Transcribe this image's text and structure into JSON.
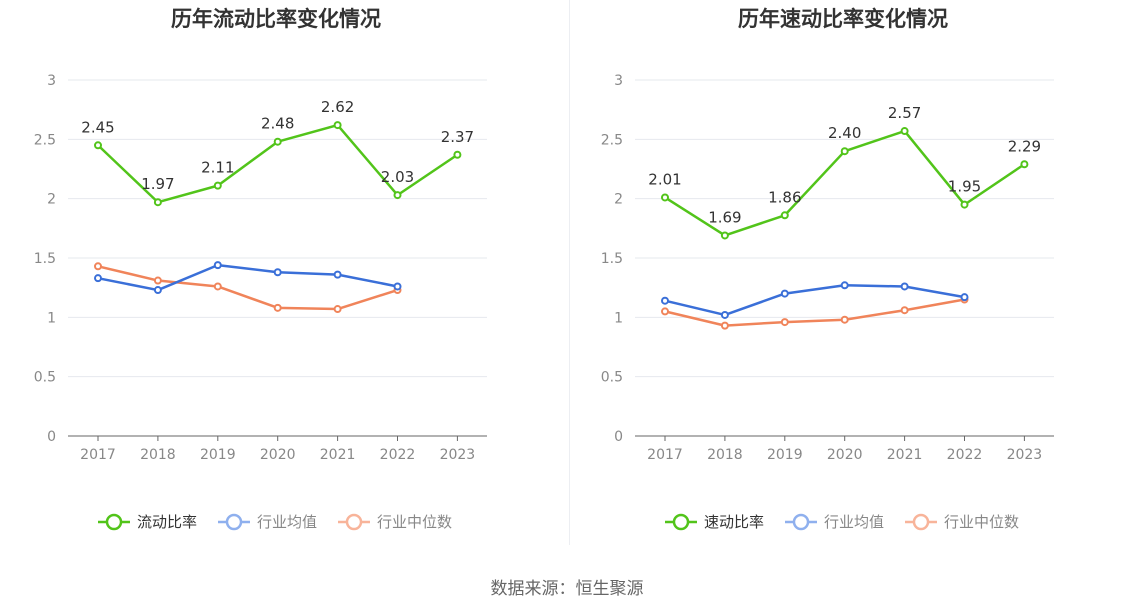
{
  "chart_data": [
    {
      "type": "line",
      "title": "历年流动比率变化情况",
      "categories": [
        "2017",
        "2018",
        "2019",
        "2020",
        "2021",
        "2022",
        "2023"
      ],
      "ylim": [
        0,
        3
      ],
      "yticks": [
        "0",
        "0.5",
        "1",
        "1.5",
        "2",
        "2.5",
        "3"
      ],
      "grid": true,
      "legend_position": "bottom",
      "series": [
        {
          "name": "流动比率",
          "color": "#52c41a",
          "values": [
            2.45,
            1.97,
            2.11,
            2.48,
            2.62,
            2.03,
            2.37
          ],
          "labels": [
            "2.45",
            "1.97",
            "2.11",
            "2.48",
            "2.62",
            "2.03",
            "2.37"
          ]
        },
        {
          "name": "行业均值",
          "color": "#3a6fd8",
          "values": [
            1.33,
            1.23,
            1.44,
            1.38,
            1.36,
            1.26,
            null
          ]
        },
        {
          "name": "行业中位数",
          "color": "#f0845a",
          "values": [
            1.43,
            1.31,
            1.26,
            1.08,
            1.07,
            1.23,
            null
          ]
        }
      ]
    },
    {
      "type": "line",
      "title": "历年速动比率变化情况",
      "categories": [
        "2017",
        "2018",
        "2019",
        "2020",
        "2021",
        "2022",
        "2023"
      ],
      "ylim": [
        0,
        3
      ],
      "yticks": [
        "0",
        "0.5",
        "1",
        "1.5",
        "2",
        "2.5",
        "3"
      ],
      "grid": true,
      "legend_position": "bottom",
      "series": [
        {
          "name": "速动比率",
          "color": "#52c41a",
          "values": [
            2.01,
            1.69,
            1.86,
            2.4,
            2.57,
            1.95,
            2.29
          ],
          "labels": [
            "2.01",
            "1.69",
            "1.86",
            "2.40",
            "2.57",
            "1.95",
            "2.29"
          ]
        },
        {
          "name": "行业均值",
          "color": "#3a6fd8",
          "values": [
            1.14,
            1.02,
            1.2,
            1.27,
            1.26,
            1.17,
            null
          ]
        },
        {
          "name": "行业中位数",
          "color": "#f0845a",
          "values": [
            1.05,
            0.93,
            0.96,
            0.98,
            1.06,
            1.15,
            null
          ]
        }
      ]
    }
  ],
  "legend_colors": {
    "primary": "#52c41a",
    "avg": "#8fb0ee",
    "median": "#f8b49a"
  },
  "source_text": "数据来源：恒生聚源"
}
